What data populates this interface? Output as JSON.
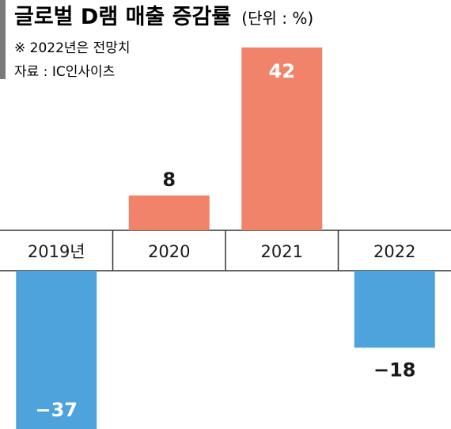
{
  "header": {
    "title": "글로벌 D램 매출 증감률",
    "unit": "(단위 : %)",
    "note": "※ 2022년은 전망치",
    "source": "자료 : IC인사이츠"
  },
  "colors": {
    "positive": "#f0836a",
    "negative": "#4fa3dd",
    "axis_band": "#ffffff",
    "axis_line": "#333333",
    "accent_bar": "#7a7a7a"
  },
  "chart_data": {
    "type": "bar",
    "title": "글로벌 D램 매출 증감률",
    "unit": "%",
    "categories": [
      "2019년",
      "2020",
      "2021",
      "2022"
    ],
    "series": [
      {
        "values": [
          -37,
          8,
          42,
          -18
        ],
        "labels": [
          "−37",
          "8",
          "42",
          "−18"
        ]
      }
    ],
    "grid": false,
    "legend": "none"
  }
}
